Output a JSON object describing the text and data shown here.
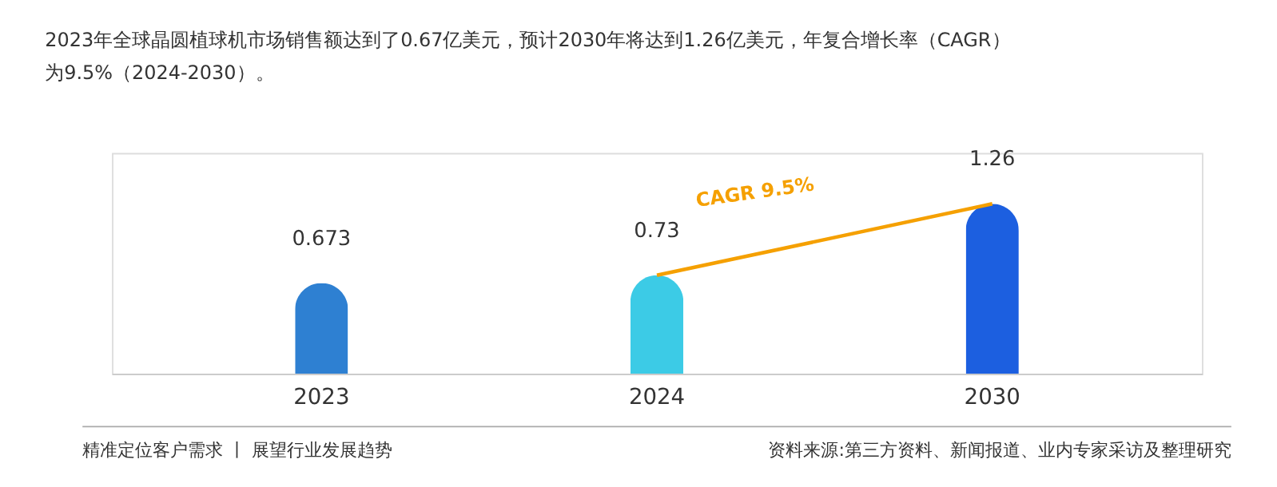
{
  "chart_data": {
    "type": "bar",
    "title": "2023年全球晶圆植球机市场销售额达到了0.67亿美元，预计2030年将达到1.26亿美元，年复合增长率（CAGR）为9.5%（2024-2030）。",
    "categories": [
      "2023",
      "2024",
      "2030"
    ],
    "values": [
      0.673,
      0.73,
      1.26
    ],
    "colors": [
      "#2e80d2",
      "#3ccbe6",
      "#1c5fe0"
    ],
    "data_labels": true,
    "annotations": [
      "CAGR 9.5%",
      "精准定位客户需求 丨 展望行业发展趋势",
      "资料来源:第三方资料、新闻报道、业内专家采访及整理研究"
    ]
  }
}
